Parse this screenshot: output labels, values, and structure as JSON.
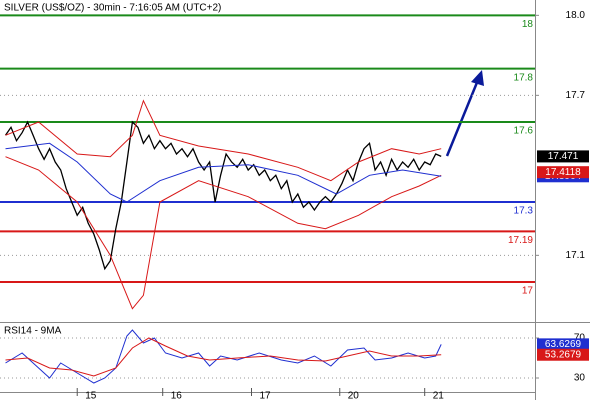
{
  "chart_data": [
    {
      "type": "line",
      "title": "SILVER (US$/OZ) - 30min - 7:16:05 AM (UTC+2)",
      "xlim": [
        -1,
        96
      ],
      "ylim": [
        16.85,
        18.05
      ],
      "yticks": [
        {
          "value": 18,
          "label": "18.0"
        },
        17.7,
        17.1
      ],
      "grid": true,
      "levels": [
        {
          "value": 18,
          "color": "#1a8a1a"
        },
        {
          "value": 17.8,
          "color": "#1a8a1a"
        },
        {
          "value": 17.6,
          "color": "#1a8a1a"
        },
        {
          "value": 17.3,
          "color": "#1f2fd0"
        },
        {
          "value": 17.19,
          "color": "#d81818"
        },
        {
          "value": 17,
          "color": "#d81818"
        }
      ],
      "series": [
        {
          "color": "#000000",
          "x": [
            0,
            1,
            2,
            3,
            4,
            5,
            6,
            7,
            8,
            9,
            10,
            11,
            12,
            13,
            14,
            15,
            16,
            17,
            18,
            19,
            20,
            21,
            22,
            23,
            24,
            25,
            26,
            27,
            28,
            29,
            30,
            31,
            32,
            33,
            34,
            35,
            36,
            37,
            38,
            39,
            40,
            41,
            42,
            43,
            44,
            45,
            46,
            47,
            48,
            49,
            50,
            51,
            52,
            53,
            54,
            55,
            56,
            57,
            58,
            59,
            60,
            61,
            62,
            63,
            64,
            65,
            66,
            67,
            68,
            69,
            70,
            71,
            72,
            73,
            74,
            75,
            76,
            77,
            78,
            79
          ],
          "values": [
            17.55,
            17.58,
            17.53,
            17.56,
            17.6,
            17.55,
            17.5,
            17.46,
            17.5,
            17.45,
            17.42,
            17.35,
            17.3,
            17.25,
            17.28,
            17.22,
            17.18,
            17.12,
            17.05,
            17.08,
            17.2,
            17.3,
            17.45,
            17.6,
            17.58,
            17.52,
            17.55,
            17.5,
            17.53,
            17.5,
            17.52,
            17.48,
            17.5,
            17.47,
            17.5,
            17.45,
            17.42,
            17.45,
            17.3,
            17.4,
            17.48,
            17.45,
            17.43,
            17.46,
            17.42,
            17.44,
            17.4,
            17.42,
            17.38,
            17.4,
            17.35,
            17.38,
            17.3,
            17.33,
            17.28,
            17.3,
            17.27,
            17.3,
            17.32,
            17.3,
            17.33,
            17.37,
            17.42,
            17.38,
            17.45,
            17.5,
            17.52,
            17.42,
            17.45,
            17.4,
            17.46,
            17.42,
            17.45,
            17.43,
            17.46,
            17.42,
            17.45,
            17.44,
            17.48,
            17.471
          ]
        },
        {
          "color": "#d81818",
          "x": [
            0,
            6,
            13,
            19,
            23,
            25,
            28,
            35,
            44,
            53,
            59,
            64,
            70,
            75,
            79
          ],
          "values": [
            17.55,
            17.6,
            17.48,
            17.47,
            17.55,
            17.68,
            17.55,
            17.51,
            17.48,
            17.43,
            17.38,
            17.45,
            17.5,
            17.48,
            17.5
          ]
        },
        {
          "color": "#d81818",
          "x": [
            0,
            6,
            13,
            19,
            23,
            25,
            28,
            35,
            44,
            53,
            58,
            64,
            70,
            75,
            79
          ],
          "values": [
            17.47,
            17.42,
            17.3,
            17.1,
            16.9,
            16.95,
            17.3,
            17.38,
            17.32,
            17.22,
            17.2,
            17.25,
            17.32,
            17.36,
            17.4
          ]
        },
        {
          "color": "#1f2fd0",
          "x": [
            0,
            8,
            13,
            19,
            22,
            28,
            35,
            44,
            53,
            60,
            66,
            72,
            79
          ],
          "values": [
            17.5,
            17.52,
            17.45,
            17.33,
            17.3,
            17.38,
            17.43,
            17.44,
            17.4,
            17.33,
            17.4,
            17.42,
            17.3964
          ]
        }
      ],
      "tags": [
        {
          "value": 17.4118,
          "color": "#d81818"
        }
      ]
    },
    {
      "type": "line",
      "title": "RSI14 - 9MA",
      "xlim": [
        -1,
        96
      ],
      "ylim": [
        16,
        83
      ],
      "yticks": [
        70,
        30
      ],
      "xticks": [
        {
          "value": 13,
          "label": "15"
        },
        {
          "value": 28.5,
          "label": "16"
        },
        {
          "value": 44.6,
          "label": "17"
        },
        {
          "value": 60.6,
          "label": "20"
        },
        {
          "value": 76,
          "label": "21"
        }
      ],
      "series": [
        {
          "color": "#1f2fd0",
          "x": [
            0,
            3,
            6,
            8,
            10,
            13,
            16,
            18,
            20,
            22,
            23,
            25,
            27,
            29,
            32,
            35,
            37,
            39,
            42,
            46,
            50,
            53,
            56,
            59,
            62,
            65,
            67,
            70,
            73,
            76,
            78,
            79
          ],
          "values": [
            45,
            55,
            40,
            30,
            45,
            35,
            25,
            30,
            40,
            72,
            78,
            65,
            70,
            55,
            50,
            55,
            42,
            52,
            48,
            55,
            48,
            45,
            52,
            42,
            58,
            60,
            48,
            50,
            55,
            50,
            52,
            63.6269
          ]
        },
        {
          "color": "#d81818",
          "x": [
            0,
            4,
            8,
            12,
            16,
            20,
            23,
            26,
            29,
            33,
            37,
            42,
            48,
            53,
            58,
            62,
            66,
            70,
            75,
            79
          ],
          "values": [
            48,
            50,
            40,
            38,
            32,
            40,
            60,
            70,
            62,
            52,
            48,
            50,
            52,
            48,
            47,
            52,
            57,
            52,
            52,
            53.2679
          ]
        }
      ]
    }
  ]
}
